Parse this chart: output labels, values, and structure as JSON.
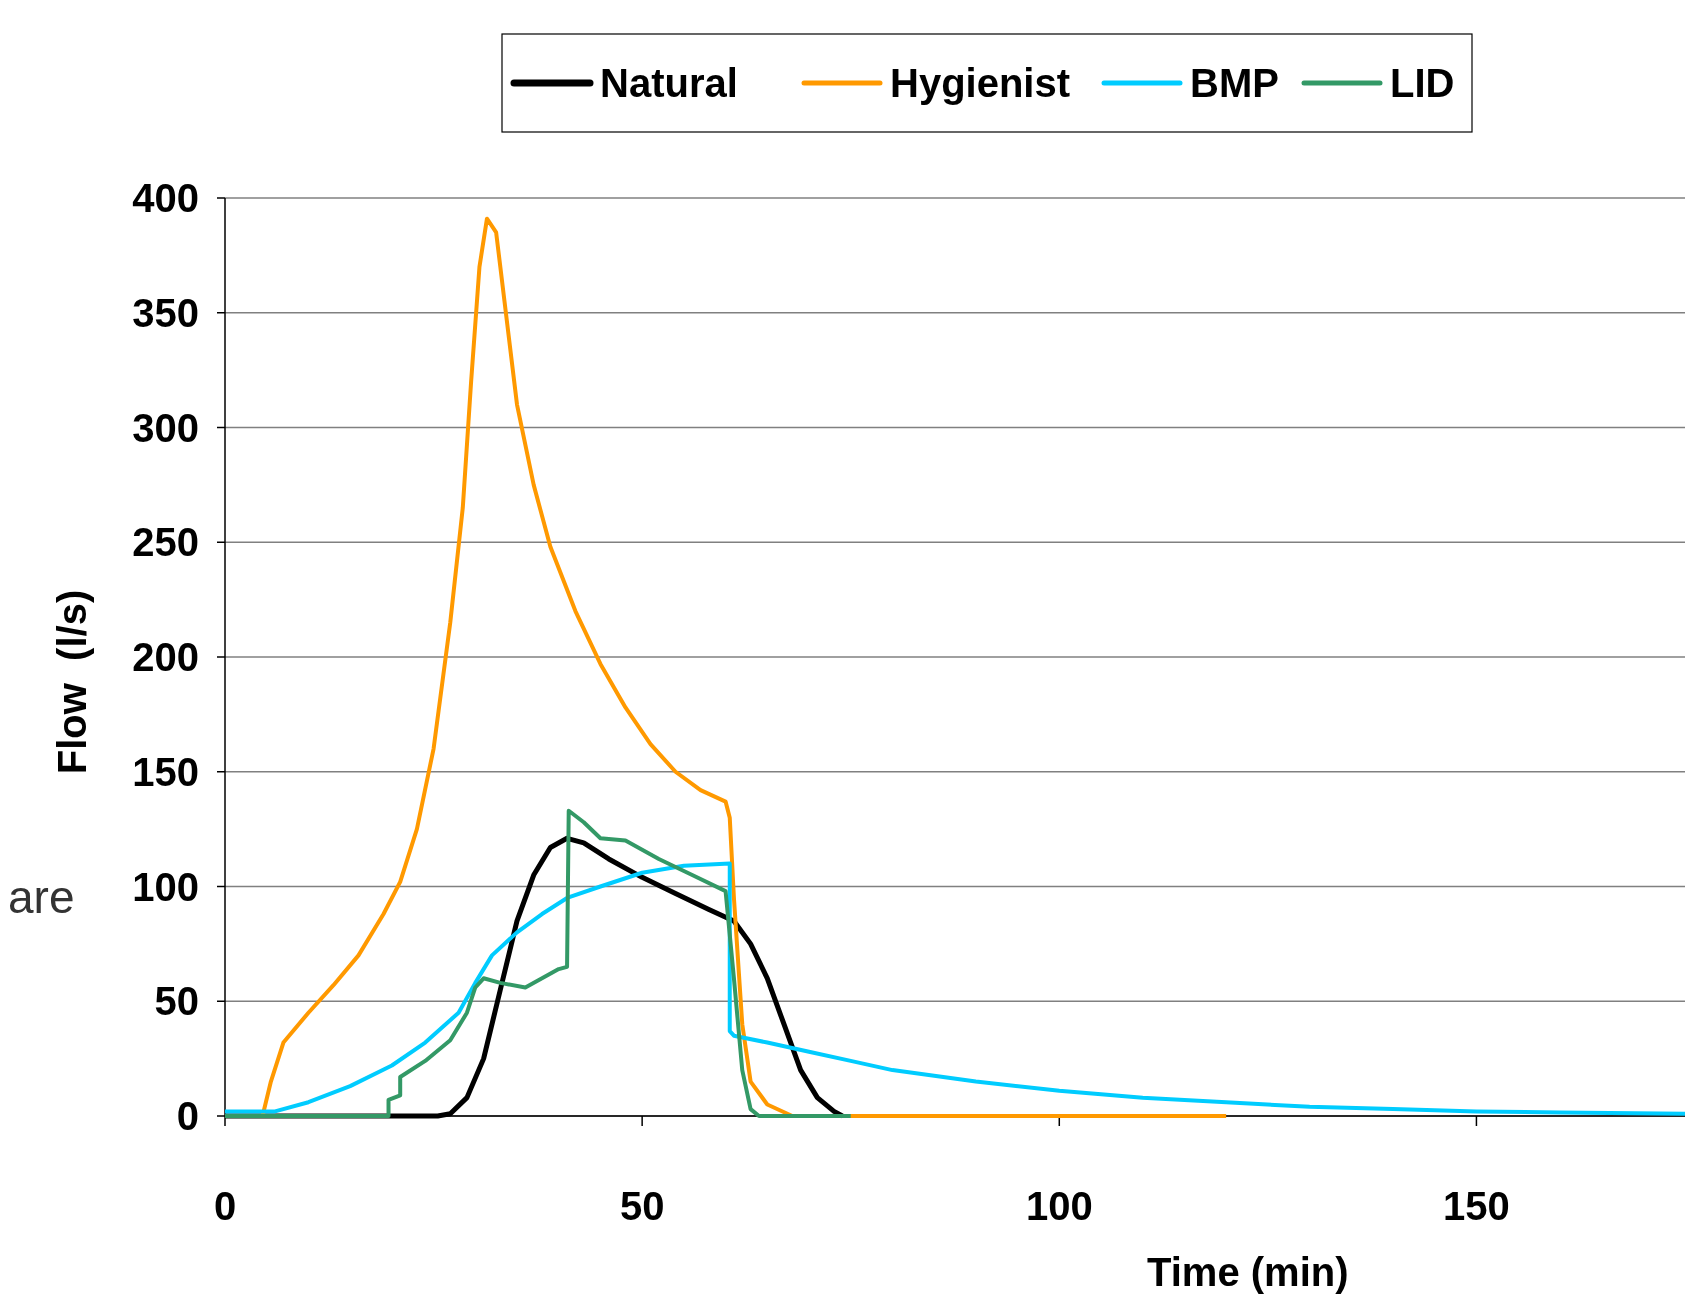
{
  "chart_data": {
    "type": "line",
    "xlabel": "Time (min)",
    "ylabel": "Flow  (l/s)",
    "annotations": [
      "are"
    ],
    "xlim": [
      0,
      175
    ],
    "xticks": [
      0,
      50,
      100,
      150
    ],
    "ylim": [
      0,
      400
    ],
    "yticks": [
      0,
      50,
      100,
      150,
      200,
      250,
      300,
      350,
      400
    ],
    "grid": "y",
    "legend": "top",
    "marker": "none",
    "line_style": "solid",
    "series": [
      {
        "name": "Natural",
        "color": "#000000",
        "x": [
          0,
          25.5,
          27,
          29,
          31,
          33,
          35,
          37,
          39,
          41,
          43,
          46,
          50,
          54,
          58,
          61,
          63,
          65,
          67,
          69,
          71,
          73,
          74
        ],
        "values": [
          0,
          0,
          1,
          8,
          25,
          55,
          85,
          105,
          117,
          121,
          119,
          112,
          104,
          97,
          90,
          85,
          75,
          60,
          40,
          20,
          8,
          2,
          0
        ]
      },
      {
        "name": "Hygienist",
        "color": "#ff9900",
        "x": [
          0,
          4.5,
          5.5,
          7,
          10,
          13,
          16,
          19,
          21,
          23,
          25,
          27,
          28.5,
          29.5,
          30.5,
          31.4,
          32.5,
          33.5,
          35,
          37,
          39,
          42,
          45,
          48,
          51,
          54,
          57,
          60,
          60.5,
          61,
          62,
          63,
          65,
          68,
          120
        ],
        "values": [
          0,
          0,
          15,
          32,
          45,
          57,
          70,
          88,
          102,
          125,
          160,
          215,
          265,
          320,
          370,
          391,
          385,
          355,
          310,
          275,
          248,
          220,
          197,
          178,
          162,
          150,
          142,
          137,
          130,
          95,
          40,
          15,
          5,
          0,
          0
        ]
      },
      {
        "name": "BMP",
        "color": "#00ccff",
        "x": [
          0,
          6,
          10,
          15,
          20,
          24,
          28,
          30,
          32,
          35,
          38,
          41,
          45,
          50,
          55,
          60.5,
          60.5,
          61,
          65,
          70,
          75,
          80,
          90,
          100,
          110,
          120,
          130,
          140,
          150,
          160,
          175
        ],
        "values": [
          2,
          2,
          6,
          13,
          22,
          32,
          45,
          58,
          70,
          80,
          88,
          95,
          100,
          106,
          109,
          110,
          37,
          35,
          32,
          28,
          24,
          20,
          15,
          11,
          8,
          6,
          4,
          3,
          2,
          1.5,
          1
        ]
      },
      {
        "name": "LID",
        "color": "#339966",
        "x": [
          0,
          19.6,
          19.6,
          21,
          21,
          24,
          27,
          29,
          30,
          31,
          33,
          36,
          38,
          40,
          41,
          41.2,
          43,
          45,
          48,
          52,
          56,
          60,
          61,
          62,
          63,
          64,
          75
        ],
        "values": [
          0,
          0,
          7,
          9,
          17,
          24,
          33,
          45,
          56,
          60,
          58,
          56,
          60,
          64,
          65,
          133,
          128,
          121,
          120,
          112,
          105,
          98,
          60,
          20,
          3,
          0,
          0
        ]
      }
    ]
  }
}
